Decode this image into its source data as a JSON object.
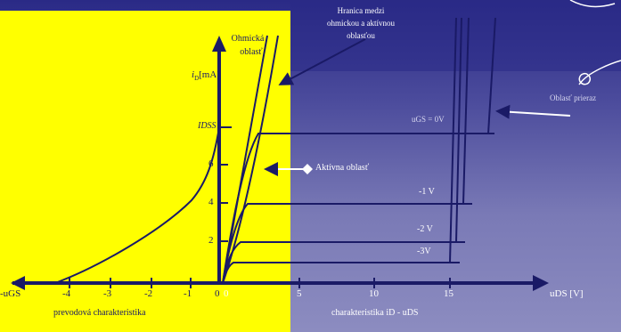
{
  "annotations": {
    "boundary": [
      "Hranica medzi",
      "ohmickou a aktívnou",
      "oblasťou"
    ],
    "ohmic": [
      "Ohmická",
      "oblasť"
    ],
    "active": "Aktívna oblasť",
    "breakdown": "Oblasť prieraz"
  },
  "axes": {
    "y_label": "iD[mA]",
    "y_label_base": "i",
    "y_label_sub": "D",
    "y_label_unit": "[mA]",
    "y_tick_idss": "IDSS",
    "y_ticks": [
      "2",
      "4",
      "6"
    ],
    "x_neg_label": "-uGS",
    "x_pos_label": "uDS [V]",
    "neg_ticks": [
      "-4",
      "-3",
      "-2",
      "-1",
      "0"
    ],
    "pos_ticks": [
      "0",
      "5",
      "10",
      "15"
    ]
  },
  "curves": {
    "ugs0": "uGS = 0V",
    "ugs1": "-1 V",
    "ugs2": "-2 V",
    "ugs3": "-3V"
  },
  "captions": {
    "transfer": "prevodová charakteristika",
    "output": "charakteristika iD - uDS"
  },
  "colors": {
    "background_top": "#2a2a86",
    "background_bottom": "#8c8cc0",
    "panel": "#ffff00",
    "lines": "#1a1a66",
    "axis": "#1a1a66"
  }
}
